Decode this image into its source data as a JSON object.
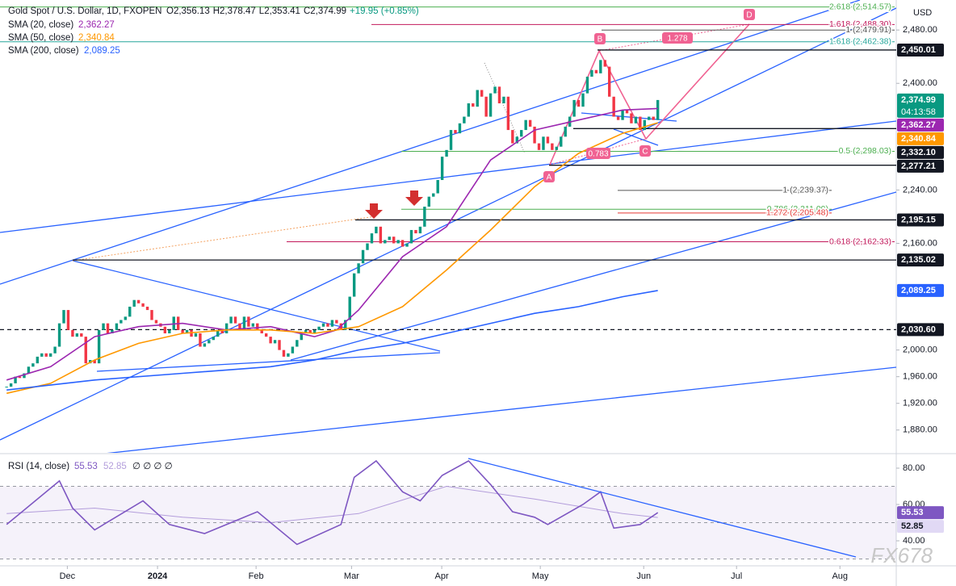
{
  "chart_data": [
    {
      "type": "candlestick",
      "title": "Gold Spot / U.S. Dollar, 1D, FXOPEN",
      "ohlc_labels": [
        "O2,356.13",
        "H2,378.47",
        "L2,353.41",
        "C2,374.99",
        "+19.95 (+0.85%)"
      ],
      "currency": "USD",
      "up_color": "#089981",
      "down_color": "#f23645",
      "values": [
        1945,
        1950,
        1960,
        1958,
        1965,
        1975,
        1980,
        1990,
        1995,
        1990,
        1995,
        2005,
        2040,
        2060,
        2030,
        2020,
        2025,
        2020,
        1980,
        1985,
        1980,
        2030,
        2040,
        2025,
        2030,
        2040,
        2045,
        2050,
        2065,
        2075,
        2070,
        2065,
        2060,
        2045,
        2040,
        2035,
        2025,
        2030,
        2050,
        2030,
        2025,
        2030,
        2020,
        2025,
        2005,
        2010,
        2015,
        2020,
        2030,
        2025,
        2040,
        2050,
        2040,
        2030,
        2050,
        2035,
        2040,
        2030,
        2025,
        2020,
        2010,
        2015,
        2000,
        1990,
        1995,
        2005,
        2015,
        2025,
        2030,
        2025,
        2030,
        2035,
        2040,
        2035,
        2045,
        2040,
        2030,
        2045,
        2080,
        2115,
        2130,
        2150,
        2160,
        2175,
        2185,
        2160,
        2165,
        2170,
        2160,
        2165,
        2155,
        2160,
        2180,
        2175,
        2185,
        2215,
        2230,
        2235,
        2255,
        2290,
        2300,
        2330,
        2325,
        2340,
        2350,
        2370,
        2365,
        2390,
        2380,
        2350,
        2385,
        2395,
        2370,
        2380,
        2330,
        2310,
        2320,
        2330,
        2345,
        2335,
        2310,
        2300,
        2320,
        2310,
        2300,
        2305,
        2320,
        2335,
        2350,
        2375,
        2365,
        2385,
        2410,
        2420,
        2415,
        2435,
        2425,
        2380,
        2350,
        2345,
        2360,
        2355,
        2340,
        2350,
        2330,
        2345,
        2350,
        2345,
        2374.99
      ],
      "last_price": {
        "value": 2374.99,
        "label": "2,374.99",
        "countdown": "04:13:58"
      },
      "xlim": [
        -1.5,
        202.2
      ],
      "xticks": [
        {
          "value": 13.8,
          "label": "Dec"
        },
        {
          "value": 34.3,
          "label": "2024"
        },
        {
          "value": 56.7,
          "label": "Feb"
        },
        {
          "value": 78.4,
          "label": "Mar"
        },
        {
          "value": 98.9,
          "label": "Apr"
        },
        {
          "value": 121.3,
          "label": "May"
        },
        {
          "value": 144.8,
          "label": "Jun"
        },
        {
          "value": 165.9,
          "label": "Jul"
        },
        {
          "value": 189.4,
          "label": "Aug"
        }
      ],
      "ylim": [
        1847,
        2525
      ],
      "yticks": [
        {
          "value": 2480,
          "label": "2,480.00"
        },
        {
          "value": 2400,
          "label": "2,400.00"
        },
        {
          "value": 2240,
          "label": "2,240.00"
        },
        {
          "value": 2160,
          "label": "2,160.00"
        },
        {
          "value": 2000,
          "label": "2,000.00"
        },
        {
          "value": 1960,
          "label": "1,960.00"
        },
        {
          "value": 1920,
          "label": "1,920.00"
        },
        {
          "value": 1880,
          "label": "1,880.00"
        }
      ],
      "series": [
        {
          "name": "SMA (20, close)",
          "color": "#9c27b0",
          "value_label": "2,362.27",
          "x": [
            0,
            10,
            20,
            30,
            40,
            50,
            60,
            70,
            75,
            80,
            90,
            100,
            110,
            120,
            130,
            140,
            148
          ],
          "values": [
            1955,
            1975,
            2020,
            2035,
            2040,
            2030,
            2035,
            2020,
            2030,
            2060,
            2140,
            2185,
            2285,
            2330,
            2345,
            2360,
            2362.27
          ]
        },
        {
          "name": "SMA (50, close)",
          "color": "#ff9800",
          "value_label": "2,340.84",
          "x": [
            0,
            10,
            20,
            30,
            40,
            50,
            60,
            70,
            80,
            90,
            100,
            110,
            120,
            130,
            140,
            148
          ],
          "values": [
            1935,
            1950,
            1985,
            2010,
            2025,
            2030,
            2030,
            2025,
            2035,
            2065,
            2120,
            2180,
            2245,
            2295,
            2325,
            2340.84
          ]
        },
        {
          "name": "SMA (200, close)",
          "color": "#2962ff",
          "value_label": "2,089.25",
          "x": [
            0,
            20,
            40,
            60,
            70,
            80,
            90,
            100,
            110,
            120,
            130,
            140,
            148
          ],
          "values": [
            1940,
            1955,
            1965,
            1975,
            1985,
            2000,
            2010,
            2025,
            2040,
            2055,
            2065,
            2080,
            2089.25
          ]
        }
      ],
      "levels": [
        {
          "value": 2450.01,
          "label": "2,450.01"
        },
        {
          "value": 2332.1,
          "label": "2,332.10"
        },
        {
          "value": 2277.21,
          "label": "2,277.21"
        },
        {
          "value": 2195.15,
          "label": "2,195.15"
        },
        {
          "value": 2135.02,
          "label": "2,135.02"
        },
        {
          "value": 2030.6,
          "label": "2,030.60",
          "dashed": true
        }
      ],
      "fib_levels": [
        {
          "value": 2514.57,
          "label": "2.618 (2,514.57)",
          "color": "#4caf50"
        },
        {
          "value": 2488.3,
          "label": "1.618 (2,488.30)",
          "color": "#c2185b"
        },
        {
          "value": 2479.91,
          "label": "1 (2,479.91)",
          "color": "#555555"
        },
        {
          "value": 2462.38,
          "label": "1.618 (2,462.38)",
          "color": "#26a69a"
        },
        {
          "value": 2298.03,
          "label": "0.5 (2,298.03)",
          "color": "#4caf50"
        },
        {
          "value": 2239.37,
          "label": "1 (2,239.37)",
          "color": "#555555"
        },
        {
          "value": 2211.09,
          "label": "0.786 (2,211.09)",
          "color": "#4caf50"
        },
        {
          "value": 2205.48,
          "label": "1.272 (2,205.48)",
          "color": "#e53935"
        },
        {
          "value": 2162.33,
          "label": "0.618 (2,162.33)",
          "color": "#c2185b"
        }
      ],
      "pattern_points": [
        "A",
        "B",
        "C",
        "D"
      ],
      "pattern_ratios": [
        "0.783",
        "1.278"
      ],
      "watermark": "FX678"
    },
    {
      "type": "line",
      "title": "RSI (14, close)",
      "extra": "∅ ∅ ∅ ∅",
      "ylim": [
        26.67,
        86.67
      ],
      "yticks": [
        {
          "value": 80,
          "label": "80.00"
        },
        {
          "value": 60,
          "label": "60.00"
        },
        {
          "value": 40,
          "label": "40.00"
        }
      ],
      "levels": [
        70,
        50,
        30
      ],
      "series": [
        {
          "name": "RSI",
          "color": "#7e57c2",
          "value_label": "55.53",
          "x": [
            0,
            12,
            15,
            20,
            31,
            37,
            45,
            57,
            66,
            76,
            79,
            84,
            90,
            94,
            99,
            105,
            110,
            115,
            120,
            123,
            131,
            135,
            138,
            144,
            148
          ],
          "values": [
            49,
            73,
            58,
            46,
            62,
            49,
            44,
            56,
            38,
            49,
            75,
            84,
            67,
            62,
            76,
            84,
            71,
            56,
            53,
            49,
            60,
            67,
            47,
            49,
            55.53
          ]
        },
        {
          "name": "RSI MA",
          "color": "#b39ddb",
          "value_label": "52.85",
          "x": [
            0,
            20,
            40,
            60,
            80,
            100,
            120,
            140,
            148
          ],
          "values": [
            55,
            58,
            53,
            50,
            55,
            70,
            63,
            55,
            52.85
          ]
        }
      ]
    }
  ]
}
